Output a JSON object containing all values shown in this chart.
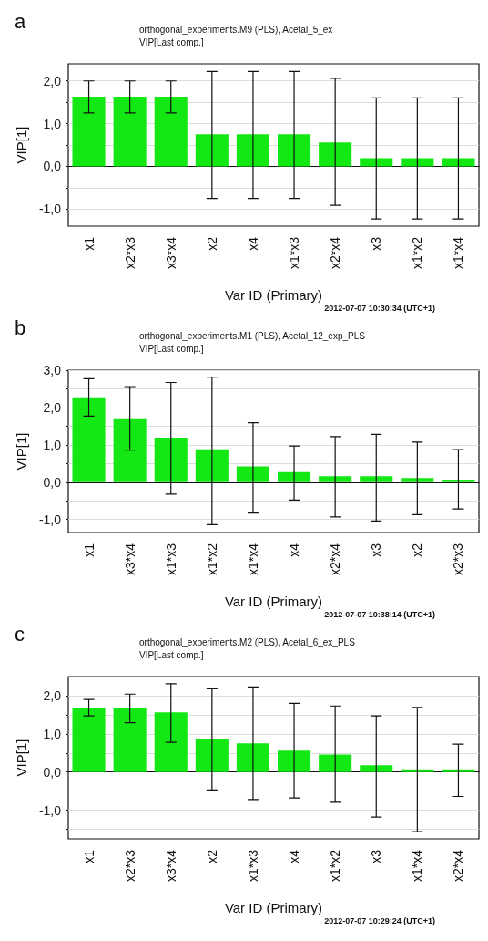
{
  "chart_data": [
    {
      "type": "bar",
      "title": "orthogonal_experiments.M9 (PLS), Acetal_5_ex",
      "subtitle": "VIP[Last comp.]",
      "xlabel": "Var ID (Primary)",
      "ylabel": "VIP[1]",
      "annotations": [
        "a",
        "2012-07-07 10:30:34 (UTC+1)"
      ],
      "categories": [
        "x1",
        "x2*x3",
        "x3*x4",
        "x2",
        "x4",
        "x1*x3",
        "x2*x4",
        "x3",
        "x1*x2",
        "x1*x4"
      ],
      "series": [
        {
          "color": "#14e814",
          "values": [
            1.63,
            1.63,
            1.63,
            0.75,
            0.75,
            0.75,
            0.56,
            0.19,
            0.19,
            0.19
          ],
          "errors": [
            [
              1.25,
              2.0
            ],
            [
              1.25,
              2.0
            ],
            [
              1.25,
              2.0
            ],
            [
              -0.75,
              2.22
            ],
            [
              -0.75,
              2.22
            ],
            [
              -0.75,
              2.22
            ],
            [
              -0.91,
              2.06
            ],
            [
              -1.23,
              1.6
            ],
            [
              -1.23,
              1.6
            ],
            [
              -1.23,
              1.6
            ]
          ]
        }
      ],
      "ylim": [
        -1.4,
        2.4
      ],
      "yticks": [
        {
          "value": -1,
          "label": "-1,0"
        },
        {
          "value": -0.5,
          "label": null
        },
        {
          "value": 0,
          "label": "0,0"
        },
        {
          "value": 0.5,
          "label": null
        },
        {
          "value": 1,
          "label": "1,0"
        },
        {
          "value": 1.5,
          "label": null
        },
        {
          "value": 2,
          "label": "2,0"
        }
      ],
      "grid": "y"
    },
    {
      "type": "bar",
      "title": "orthogonal_experiments.M1 (PLS), Acetal_12_exp_PLS",
      "subtitle": "VIP[Last comp.]",
      "xlabel": "Var ID (Primary)",
      "ylabel": "VIP[1]",
      "annotations": [
        "b",
        "2012-07-07 10:38:14 (UTC+1)"
      ],
      "categories": [
        "x1",
        "x3*x4",
        "x1*x3",
        "x1*x2",
        "x1*x4",
        "x4",
        "x2*x4",
        "x3",
        "x2",
        "x2*x3"
      ],
      "series": [
        {
          "color": "#14e814",
          "values": [
            2.27,
            1.71,
            1.19,
            0.88,
            0.42,
            0.27,
            0.16,
            0.16,
            0.11,
            0.07
          ],
          "errors": [
            [
              1.77,
              2.77
            ],
            [
              0.86,
              2.56
            ],
            [
              -0.32,
              2.67
            ],
            [
              -1.14,
              2.81
            ],
            [
              -0.83,
              1.59
            ],
            [
              -0.48,
              0.97
            ],
            [
              -0.93,
              1.22
            ],
            [
              -1.04,
              1.28
            ],
            [
              -0.87,
              1.07
            ],
            [
              -0.72,
              0.87
            ]
          ]
        }
      ],
      "ylim": [
        -1.35,
        3.0
      ],
      "yticks": [
        {
          "value": -1,
          "label": "-1,0"
        },
        {
          "value": -0.5,
          "label": null
        },
        {
          "value": 0,
          "label": "0,0"
        },
        {
          "value": 0.5,
          "label": null
        },
        {
          "value": 1,
          "label": "1,0"
        },
        {
          "value": 1.5,
          "label": null
        },
        {
          "value": 2,
          "label": "2,0"
        },
        {
          "value": 2.5,
          "label": null
        },
        {
          "value": 3,
          "label": "3,0"
        }
      ],
      "grid": "y"
    },
    {
      "type": "bar",
      "title": "orthogonal_experiments.M2 (PLS), Acetal_6_ex_PLS",
      "subtitle": "VIP[Last comp.]",
      "xlabel": "Var ID (Primary)",
      "ylabel": "VIP[1]",
      "annotations": [
        "c",
        "2012-07-07 10:29:24 (UTC+1)"
      ],
      "categories": [
        "x1",
        "x2*x3",
        "x3*x4",
        "x2",
        "x1*x3",
        "x4",
        "x1*x2",
        "x3",
        "x1*x4",
        "x2*x4"
      ],
      "series": [
        {
          "color": "#14e814",
          "values": [
            1.69,
            1.69,
            1.56,
            0.85,
            0.75,
            0.56,
            0.46,
            0.18,
            0.07,
            0.07
          ],
          "errors": [
            [
              1.47,
              1.9
            ],
            [
              1.29,
              2.04
            ],
            [
              0.78,
              2.31
            ],
            [
              -0.47,
              2.18
            ],
            [
              -0.72,
              2.23
            ],
            [
              -0.68,
              1.8
            ],
            [
              -0.79,
              1.73
            ],
            [
              -1.18,
              1.47
            ],
            [
              -1.56,
              1.69
            ],
            [
              -0.64,
              0.73
            ]
          ]
        }
      ],
      "ylim": [
        -1.75,
        2.5
      ],
      "yticks": [
        {
          "value": -1.5,
          "label": null
        },
        {
          "value": -1,
          "label": "-1,0"
        },
        {
          "value": -0.5,
          "label": null
        },
        {
          "value": 0,
          "label": "0,0"
        },
        {
          "value": 0.5,
          "label": null
        },
        {
          "value": 1,
          "label": "1,0"
        },
        {
          "value": 1.5,
          "label": null
        },
        {
          "value": 2,
          "label": "2,0"
        }
      ],
      "grid": "y"
    }
  ]
}
